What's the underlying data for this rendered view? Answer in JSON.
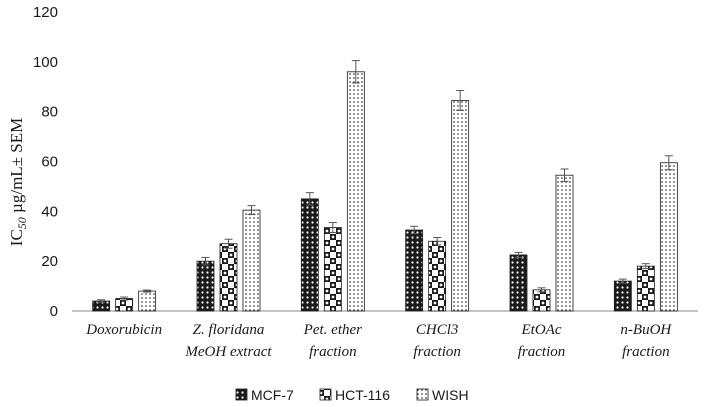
{
  "chart_data": {
    "type": "bar",
    "title": "",
    "xlabel": "",
    "ylabel": "IC50 µg/mL± SEM",
    "ylabel_parts": {
      "main": "IC",
      "sub": "50",
      "rest": " µg/mL± SEM"
    },
    "ylim": [
      0,
      120
    ],
    "yticks": [
      0,
      20,
      40,
      60,
      80,
      100,
      120
    ],
    "grid": false,
    "legend_position": "bottom",
    "categories": [
      [
        "Doxorubicin"
      ],
      [
        "Z. floridana",
        "MeOH extract"
      ],
      [
        "Pet. ether",
        "fraction"
      ],
      [
        "CHCl3",
        "fraction"
      ],
      [
        "EtOAc",
        "fraction"
      ],
      [
        "n-BuOH",
        "fraction"
      ]
    ],
    "series": [
      {
        "name": "MCF-7",
        "pattern": "dense-dots",
        "values": [
          4,
          20,
          45,
          32.5,
          22.5,
          12
        ],
        "errors": [
          0.5,
          1.5,
          2.5,
          1.5,
          1.0,
          0.8
        ]
      },
      {
        "name": "HCT-116",
        "pattern": "large-checker",
        "values": [
          5,
          27,
          33.5,
          28,
          8.5,
          18
        ],
        "errors": [
          0.6,
          1.8,
          2.0,
          1.5,
          0.8,
          1.0
        ]
      },
      {
        "name": "WISH",
        "pattern": "sparse-dots",
        "values": [
          8,
          40.5,
          96,
          84.5,
          54.5,
          59.5
        ],
        "errors": [
          0.4,
          1.8,
          4.5,
          4.0,
          2.5,
          2.8
        ]
      }
    ]
  }
}
